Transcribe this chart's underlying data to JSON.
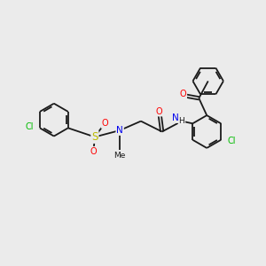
{
  "background_color": "#ebebeb",
  "bond_color": "#1a1a1a",
  "atom_colors": {
    "Cl": "#00bb00",
    "S": "#bbbb00",
    "O": "#ff0000",
    "N": "#0000ee",
    "C": "#1a1a1a"
  },
  "bond_lw": 1.3,
  "font_size": 7.5,
  "ring_r": 0.62
}
